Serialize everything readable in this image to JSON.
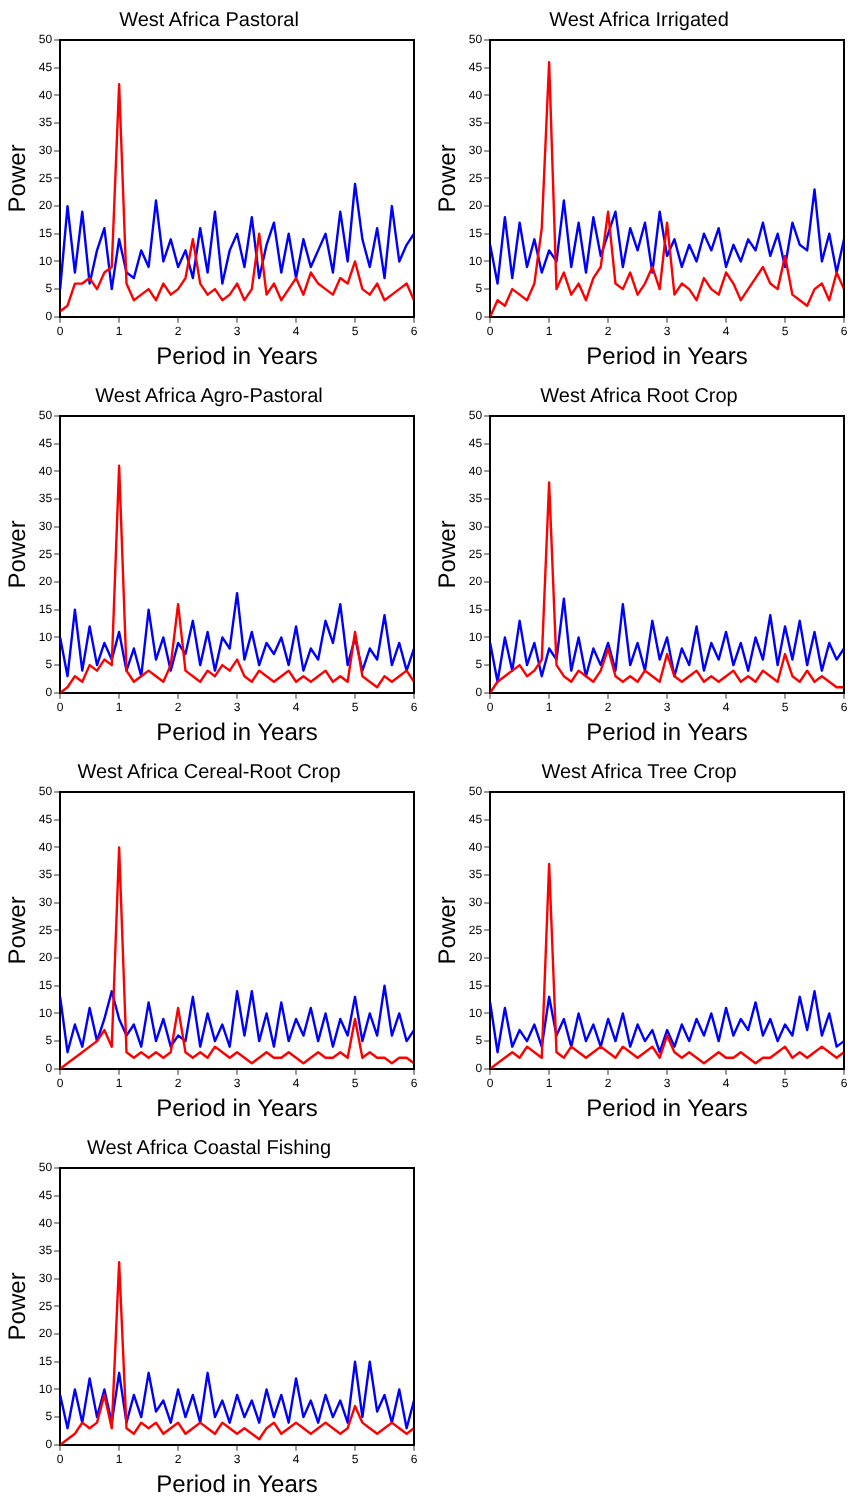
{
  "chart_data": [
    {
      "type": "line",
      "title": "West Africa Pastoral",
      "xlabel": "Period in Years",
      "ylabel": "Power",
      "xlim": [
        0,
        6
      ],
      "ylim": [
        0,
        50
      ],
      "xticks": [
        0,
        1,
        2,
        3,
        4,
        5,
        6
      ],
      "yticks": [
        0,
        5,
        10,
        15,
        20,
        25,
        30,
        35,
        40,
        45,
        50
      ],
      "x": [
        0,
        0.125,
        0.25,
        0.375,
        0.5,
        0.625,
        0.75,
        0.875,
        1,
        1.125,
        1.25,
        1.375,
        1.5,
        1.625,
        1.75,
        1.875,
        2,
        2.125,
        2.25,
        2.375,
        2.5,
        2.625,
        2.75,
        2.875,
        3,
        3.125,
        3.25,
        3.375,
        3.5,
        3.625,
        3.75,
        3.875,
        4,
        4.125,
        4.25,
        4.375,
        4.5,
        4.625,
        4.75,
        4.875,
        5,
        5.125,
        5.25,
        5.375,
        5.5,
        5.625,
        5.75,
        5.875,
        6
      ],
      "series": [
        {
          "color": "#0000ff",
          "values": [
            5,
            20,
            8,
            19,
            6,
            12,
            16,
            5,
            14,
            8,
            7,
            12,
            9,
            21,
            10,
            14,
            9,
            12,
            7,
            16,
            8,
            19,
            6,
            12,
            15,
            9,
            18,
            7,
            13,
            17,
            8,
            15,
            7,
            14,
            9,
            12,
            15,
            8,
            19,
            10,
            24,
            14,
            9,
            16,
            7,
            20,
            10,
            13,
            15
          ]
        },
        {
          "color": "#ff0000",
          "values": [
            1,
            2,
            6,
            6,
            7,
            5,
            8,
            9,
            42,
            6,
            3,
            4,
            5,
            3,
            6,
            4,
            5,
            7,
            14,
            6,
            4,
            5,
            3,
            4,
            6,
            3,
            5,
            15,
            4,
            6,
            3,
            5,
            7,
            4,
            8,
            6,
            5,
            4,
            7,
            6,
            10,
            5,
            4,
            6,
            3,
            4,
            5,
            6,
            3
          ]
        }
      ]
    },
    {
      "type": "line",
      "title": "West Africa Irrigated",
      "xlabel": "Period in Years",
      "ylabel": "Power",
      "xlim": [
        0,
        6
      ],
      "ylim": [
        0,
        50
      ],
      "xticks": [
        0,
        1,
        2,
        3,
        4,
        5,
        6
      ],
      "yticks": [
        0,
        5,
        10,
        15,
        20,
        25,
        30,
        35,
        40,
        45,
        50
      ],
      "x": [
        0,
        0.125,
        0.25,
        0.375,
        0.5,
        0.625,
        0.75,
        0.875,
        1,
        1.125,
        1.25,
        1.375,
        1.5,
        1.625,
        1.75,
        1.875,
        2,
        2.125,
        2.25,
        2.375,
        2.5,
        2.625,
        2.75,
        2.875,
        3,
        3.125,
        3.25,
        3.375,
        3.5,
        3.625,
        3.75,
        3.875,
        4,
        4.125,
        4.25,
        4.375,
        4.5,
        4.625,
        4.75,
        4.875,
        5,
        5.125,
        5.25,
        5.375,
        5.5,
        5.625,
        5.75,
        5.875,
        6
      ],
      "series": [
        {
          "color": "#0000ff",
          "values": [
            13,
            6,
            18,
            7,
            17,
            9,
            14,
            8,
            12,
            10,
            21,
            9,
            17,
            8,
            18,
            11,
            15,
            19,
            9,
            16,
            12,
            17,
            8,
            19,
            11,
            14,
            9,
            13,
            10,
            15,
            12,
            16,
            9,
            13,
            10,
            14,
            12,
            17,
            11,
            15,
            9,
            17,
            13,
            12,
            23,
            10,
            15,
            8,
            14
          ]
        },
        {
          "color": "#ff0000",
          "values": [
            0,
            3,
            2,
            5,
            4,
            3,
            6,
            16,
            46,
            5,
            8,
            4,
            6,
            3,
            7,
            9,
            19,
            6,
            5,
            8,
            4,
            6,
            9,
            5,
            17,
            4,
            6,
            5,
            3,
            7,
            5,
            4,
            8,
            6,
            3,
            5,
            7,
            9,
            6,
            5,
            11,
            4,
            3,
            2,
            5,
            6,
            3,
            8,
            5
          ]
        }
      ]
    },
    {
      "type": "line",
      "title": "West Africa Agro-Pastoral",
      "xlabel": "Period in Years",
      "ylabel": "Power",
      "xlim": [
        0,
        6
      ],
      "ylim": [
        0,
        50
      ],
      "xticks": [
        0,
        1,
        2,
        3,
        4,
        5,
        6
      ],
      "yticks": [
        0,
        5,
        10,
        15,
        20,
        25,
        30,
        35,
        40,
        45,
        50
      ],
      "x": [
        0,
        0.125,
        0.25,
        0.375,
        0.5,
        0.625,
        0.75,
        0.875,
        1,
        1.125,
        1.25,
        1.375,
        1.5,
        1.625,
        1.75,
        1.875,
        2,
        2.125,
        2.25,
        2.375,
        2.5,
        2.625,
        2.75,
        2.875,
        3,
        3.125,
        3.25,
        3.375,
        3.5,
        3.625,
        3.75,
        3.875,
        4,
        4.125,
        4.25,
        4.375,
        4.5,
        4.625,
        4.75,
        4.875,
        5,
        5.125,
        5.25,
        5.375,
        5.5,
        5.625,
        5.75,
        5.875,
        6
      ],
      "series": [
        {
          "color": "#0000ff",
          "values": [
            10,
            3,
            15,
            4,
            12,
            5,
            9,
            6,
            11,
            4,
            8,
            3,
            15,
            6,
            10,
            4,
            9,
            7,
            13,
            5,
            11,
            4,
            10,
            8,
            18,
            6,
            11,
            5,
            9,
            7,
            10,
            5,
            12,
            4,
            8,
            6,
            13,
            9,
            16,
            5,
            10,
            4,
            8,
            6,
            14,
            5,
            9,
            4,
            8
          ]
        },
        {
          "color": "#ff0000",
          "values": [
            0,
            1,
            3,
            2,
            5,
            4,
            6,
            5,
            41,
            4,
            2,
            3,
            4,
            3,
            2,
            5,
            16,
            4,
            3,
            2,
            4,
            3,
            5,
            4,
            6,
            3,
            2,
            4,
            3,
            2,
            3,
            4,
            2,
            3,
            2,
            3,
            4,
            2,
            3,
            2,
            11,
            3,
            2,
            1,
            3,
            2,
            3,
            4,
            2
          ]
        }
      ]
    },
    {
      "type": "line",
      "title": "West Africa Root Crop",
      "xlabel": "Period in Years",
      "ylabel": "Power",
      "xlim": [
        0,
        6
      ],
      "ylim": [
        0,
        50
      ],
      "xticks": [
        0,
        1,
        2,
        3,
        4,
        5,
        6
      ],
      "yticks": [
        0,
        5,
        10,
        15,
        20,
        25,
        30,
        35,
        40,
        45,
        50
      ],
      "x": [
        0,
        0.125,
        0.25,
        0.375,
        0.5,
        0.625,
        0.75,
        0.875,
        1,
        1.125,
        1.25,
        1.375,
        1.5,
        1.625,
        1.75,
        1.875,
        2,
        2.125,
        2.25,
        2.375,
        2.5,
        2.625,
        2.75,
        2.875,
        3,
        3.125,
        3.25,
        3.375,
        3.5,
        3.625,
        3.75,
        3.875,
        4,
        4.125,
        4.25,
        4.375,
        4.5,
        4.625,
        4.75,
        4.875,
        5,
        5.125,
        5.25,
        5.375,
        5.5,
        5.625,
        5.75,
        5.875,
        6
      ],
      "series": [
        {
          "color": "#0000ff",
          "values": [
            9,
            2,
            10,
            4,
            13,
            5,
            9,
            3,
            8,
            6,
            17,
            4,
            10,
            3,
            8,
            5,
            9,
            4,
            16,
            5,
            9,
            4,
            13,
            6,
            10,
            3,
            8,
            5,
            12,
            4,
            9,
            6,
            11,
            5,
            9,
            4,
            10,
            6,
            14,
            5,
            12,
            6,
            13,
            5,
            11,
            4,
            9,
            6,
            8
          ]
        },
        {
          "color": "#ff0000",
          "values": [
            0,
            2,
            3,
            4,
            5,
            3,
            4,
            6,
            38,
            5,
            3,
            2,
            4,
            3,
            2,
            4,
            8,
            3,
            2,
            3,
            2,
            4,
            3,
            2,
            7,
            3,
            2,
            3,
            4,
            2,
            3,
            2,
            3,
            4,
            2,
            3,
            2,
            4,
            3,
            2,
            7,
            3,
            2,
            4,
            2,
            3,
            2,
            1,
            1
          ]
        }
      ]
    },
    {
      "type": "line",
      "title": "West Africa Cereal-Root Crop",
      "xlabel": "Period in Years",
      "ylabel": "Power",
      "xlim": [
        0,
        6
      ],
      "ylim": [
        0,
        50
      ],
      "xticks": [
        0,
        1,
        2,
        3,
        4,
        5,
        6
      ],
      "yticks": [
        0,
        5,
        10,
        15,
        20,
        25,
        30,
        35,
        40,
        45,
        50
      ],
      "x": [
        0,
        0.125,
        0.25,
        0.375,
        0.5,
        0.625,
        0.75,
        0.875,
        1,
        1.125,
        1.25,
        1.375,
        1.5,
        1.625,
        1.75,
        1.875,
        2,
        2.125,
        2.25,
        2.375,
        2.5,
        2.625,
        2.75,
        2.875,
        3,
        3.125,
        3.25,
        3.375,
        3.5,
        3.625,
        3.75,
        3.875,
        4,
        4.125,
        4.25,
        4.375,
        4.5,
        4.625,
        4.75,
        4.875,
        5,
        5.125,
        5.25,
        5.375,
        5.5,
        5.625,
        5.75,
        5.875,
        6
      ],
      "series": [
        {
          "color": "#0000ff",
          "values": [
            13,
            3,
            8,
            4,
            11,
            5,
            9,
            14,
            9,
            6,
            8,
            4,
            12,
            5,
            9,
            4,
            6,
            5,
            13,
            4,
            10,
            5,
            8,
            4,
            14,
            6,
            14,
            5,
            10,
            4,
            12,
            5,
            9,
            6,
            11,
            5,
            10,
            4,
            9,
            6,
            13,
            5,
            10,
            6,
            15,
            6,
            10,
            5,
            7
          ]
        },
        {
          "color": "#ff0000",
          "values": [
            0,
            1,
            2,
            3,
            4,
            5,
            7,
            4,
            40,
            3,
            2,
            3,
            2,
            3,
            2,
            3,
            11,
            3,
            2,
            3,
            2,
            4,
            3,
            2,
            3,
            2,
            1,
            2,
            3,
            2,
            2,
            3,
            2,
            1,
            2,
            3,
            2,
            2,
            3,
            2,
            9,
            2,
            3,
            2,
            2,
            1,
            2,
            2,
            1
          ]
        }
      ]
    },
    {
      "type": "line",
      "title": "West Africa Tree Crop",
      "xlabel": "Period in Years",
      "ylabel": "Power",
      "xlim": [
        0,
        6
      ],
      "ylim": [
        0,
        50
      ],
      "xticks": [
        0,
        1,
        2,
        3,
        4,
        5,
        6
      ],
      "yticks": [
        0,
        5,
        10,
        15,
        20,
        25,
        30,
        35,
        40,
        45,
        50
      ],
      "x": [
        0,
        0.125,
        0.25,
        0.375,
        0.5,
        0.625,
        0.75,
        0.875,
        1,
        1.125,
        1.25,
        1.375,
        1.5,
        1.625,
        1.75,
        1.875,
        2,
        2.125,
        2.25,
        2.375,
        2.5,
        2.625,
        2.75,
        2.875,
        3,
        3.125,
        3.25,
        3.375,
        3.5,
        3.625,
        3.75,
        3.875,
        4,
        4.125,
        4.25,
        4.375,
        4.5,
        4.625,
        4.75,
        4.875,
        5,
        5.125,
        5.25,
        5.375,
        5.5,
        5.625,
        5.75,
        5.875,
        6
      ],
      "series": [
        {
          "color": "#0000ff",
          "values": [
            12,
            3,
            11,
            4,
            7,
            5,
            8,
            4,
            13,
            6,
            9,
            4,
            10,
            5,
            8,
            4,
            9,
            5,
            10,
            4,
            8,
            5,
            7,
            3,
            7,
            4,
            8,
            5,
            9,
            6,
            10,
            5,
            11,
            6,
            9,
            7,
            12,
            6,
            9,
            5,
            8,
            6,
            13,
            7,
            14,
            6,
            10,
            4,
            5
          ]
        },
        {
          "color": "#ff0000",
          "values": [
            0,
            1,
            2,
            3,
            2,
            4,
            3,
            2,
            37,
            3,
            2,
            4,
            3,
            2,
            3,
            4,
            3,
            2,
            4,
            3,
            2,
            3,
            4,
            2,
            6,
            3,
            2,
            3,
            2,
            1,
            2,
            3,
            2,
            2,
            3,
            2,
            1,
            2,
            2,
            3,
            4,
            2,
            3,
            2,
            3,
            4,
            3,
            2,
            3
          ]
        }
      ]
    },
    {
      "type": "line",
      "title": "West Africa Coastal Fishing",
      "xlabel": "Period in Years",
      "ylabel": "Power",
      "xlim": [
        0,
        6
      ],
      "ylim": [
        0,
        50
      ],
      "xticks": [
        0,
        1,
        2,
        3,
        4,
        5,
        6
      ],
      "yticks": [
        0,
        5,
        10,
        15,
        20,
        25,
        30,
        35,
        40,
        45,
        50
      ],
      "x": [
        0,
        0.125,
        0.25,
        0.375,
        0.5,
        0.625,
        0.75,
        0.875,
        1,
        1.125,
        1.25,
        1.375,
        1.5,
        1.625,
        1.75,
        1.875,
        2,
        2.125,
        2.25,
        2.375,
        2.5,
        2.625,
        2.75,
        2.875,
        3,
        3.125,
        3.25,
        3.375,
        3.5,
        3.625,
        3.75,
        3.875,
        4,
        4.125,
        4.25,
        4.375,
        4.5,
        4.625,
        4.75,
        4.875,
        5,
        5.125,
        5.25,
        5.375,
        5.5,
        5.625,
        5.75,
        5.875,
        6
      ],
      "series": [
        {
          "color": "#0000ff",
          "values": [
            9,
            3,
            10,
            4,
            12,
            5,
            10,
            4,
            13,
            4,
            9,
            5,
            13,
            6,
            8,
            4,
            10,
            5,
            9,
            4,
            13,
            5,
            8,
            4,
            9,
            5,
            8,
            4,
            10,
            5,
            9,
            4,
            12,
            5,
            8,
            4,
            9,
            5,
            8,
            4,
            15,
            5,
            15,
            6,
            9,
            4,
            10,
            3,
            8
          ]
        },
        {
          "color": "#ff0000",
          "values": [
            0,
            1,
            2,
            4,
            3,
            4,
            9,
            3,
            33,
            3,
            2,
            4,
            3,
            4,
            2,
            3,
            4,
            2,
            3,
            4,
            3,
            2,
            4,
            3,
            2,
            3,
            2,
            1,
            3,
            4,
            2,
            3,
            4,
            3,
            2,
            3,
            4,
            3,
            2,
            3,
            7,
            4,
            3,
            2,
            3,
            4,
            3,
            2,
            3
          ]
        }
      ]
    }
  ]
}
